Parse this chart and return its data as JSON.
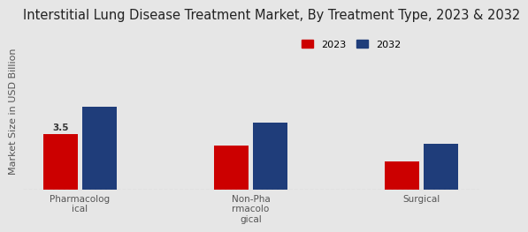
{
  "title": "Interstitial Lung Disease Treatment Market, By Treatment Type, 2023 & 2032",
  "ylabel": "Market Size in USD Billion",
  "categories": [
    "Pharmacolog\nical",
    "Non-Pha\nrmacolo\ngical",
    "Surgical"
  ],
  "values_2023": [
    3.5,
    2.8,
    1.8
  ],
  "values_2032": [
    5.2,
    4.2,
    2.9
  ],
  "color_2023": "#cc0000",
  "color_2032": "#1f3d7a",
  "bar_annotation": "3.5",
  "background_color": "#e6e6e6",
  "legend_labels": [
    "2023",
    "2032"
  ],
  "ylim": [
    0,
    10
  ],
  "title_fontsize": 10.5,
  "label_fontsize": 8,
  "tick_fontsize": 7.5
}
